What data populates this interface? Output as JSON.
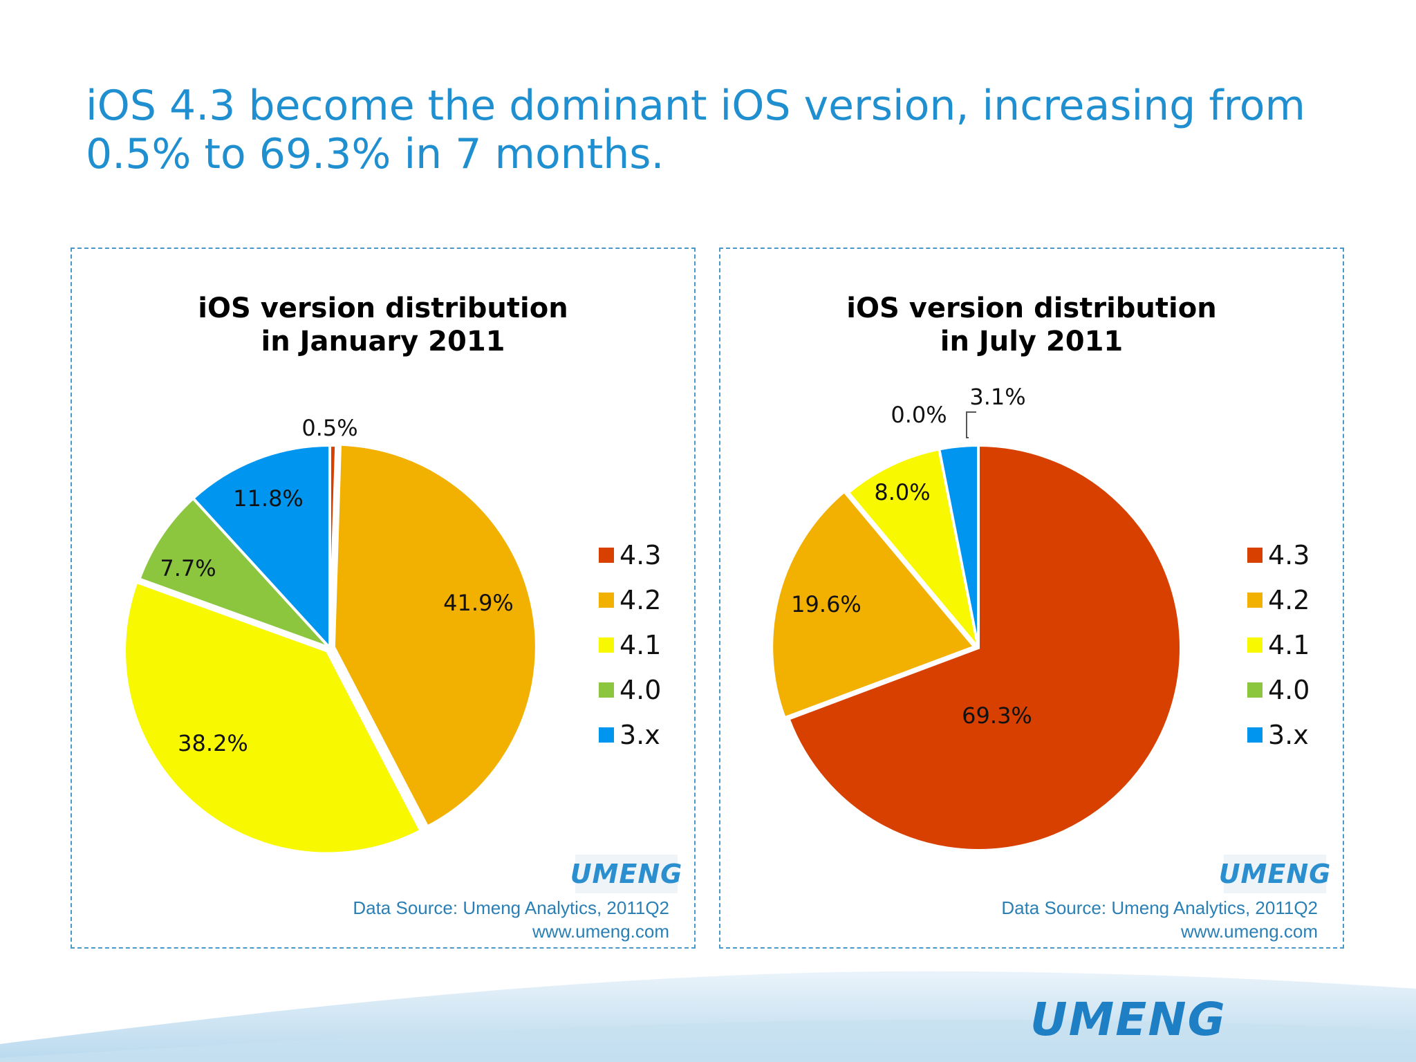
{
  "slide": {
    "title_line1": "iOS 4.3 become the dominant iOS version, increasing from",
    "title_line2": "0.5% to 69.3% in 7 months.",
    "footer_logo": "UMENG"
  },
  "legend": [
    "4.3",
    "4.2",
    "4.1",
    "4.0",
    "3.x"
  ],
  "colors": {
    "4.3": "#d84000",
    "4.2": "#f2b000",
    "4.1": "#f8f800",
    "4.0": "#8cc63f",
    "3.x": "#0096f0",
    "title": "#1f8fd0",
    "source": "#2a7fb5"
  },
  "chart_data": [
    {
      "type": "pie",
      "title_line1": "iOS version distribution",
      "title_line2": "in January 2011",
      "categories": [
        "4.3",
        "4.2",
        "4.1",
        "4.0",
        "3.x"
      ],
      "values": [
        0.5,
        41.9,
        38.2,
        7.7,
        11.8
      ],
      "labels": [
        "0.5%",
        "41.9%",
        "38.2%",
        "7.7%",
        "11.8%"
      ],
      "legend_position": "right",
      "source_line1": "Data Source: Umeng Analytics, 2011Q2",
      "source_line2": "www.umeng.com",
      "logo": "UMENG"
    },
    {
      "type": "pie",
      "title_line1": "iOS version distribution",
      "title_line2": "in July 2011",
      "categories": [
        "4.3",
        "4.2",
        "4.1",
        "4.0",
        "3.x"
      ],
      "values": [
        69.3,
        19.6,
        8.0,
        0.0,
        3.1
      ],
      "labels": [
        "69.3%",
        "19.6%",
        "8.0%",
        "0.0%",
        "3.1%"
      ],
      "legend_position": "right",
      "source_line1": "Data Source: Umeng Analytics, 2011Q2",
      "source_line2": "www.umeng.com",
      "logo": "UMENG"
    }
  ]
}
